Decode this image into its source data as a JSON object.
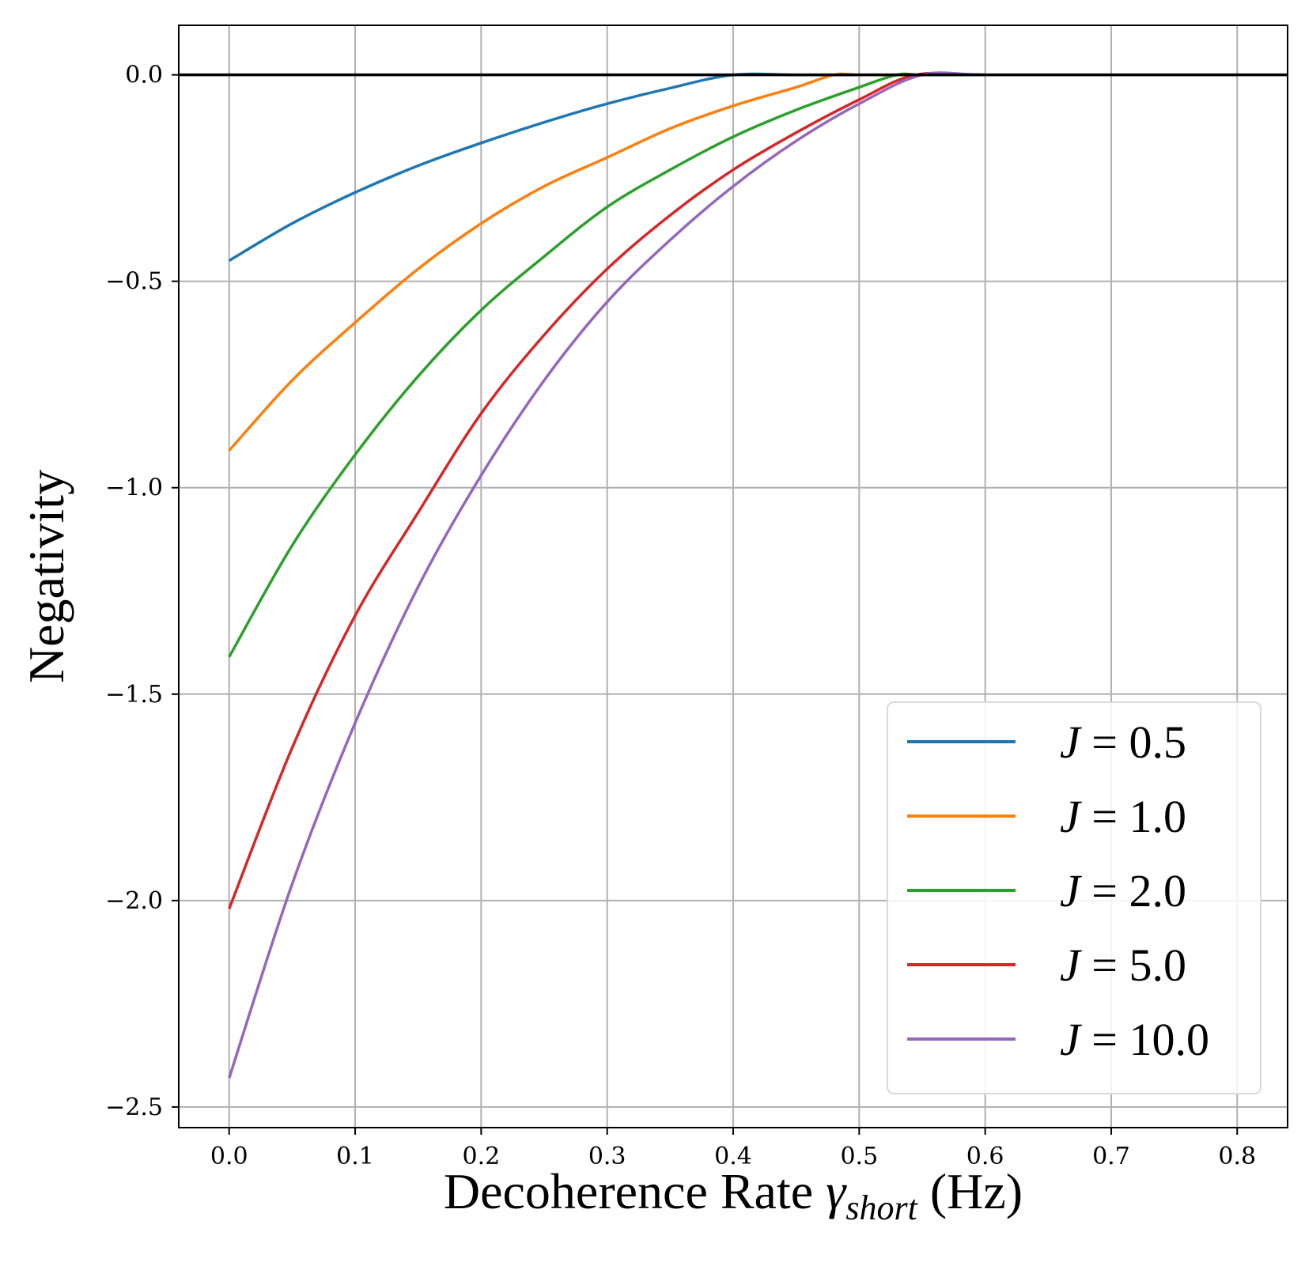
{
  "chart_data": {
    "type": "line",
    "title": "",
    "xlabel": {
      "main": "Decoherence Rate ",
      "symbol": "γ",
      "subscript": "short",
      "unit": " (Hz)"
    },
    "ylabel": "Negativity",
    "xlim": [
      -0.04,
      0.84
    ],
    "ylim": [
      -2.55,
      0.12
    ],
    "xticks": [
      0.0,
      0.1,
      0.2,
      0.3,
      0.4,
      0.5,
      0.6,
      0.7,
      0.8
    ],
    "yticks": [
      0.0,
      -0.5,
      -1.0,
      -1.5,
      -2.0,
      -2.5
    ],
    "xtick_labels": [
      "0.0",
      "0.1",
      "0.2",
      "0.3",
      "0.4",
      "0.5",
      "0.6",
      "0.7",
      "0.8"
    ],
    "ytick_labels": [
      "0.0",
      "−0.5",
      "−1.0",
      "−1.5",
      "−2.0",
      "−2.5"
    ],
    "grid": true,
    "legend_position": "lower-right",
    "reference_line": {
      "y": 0.0,
      "color": "#000000"
    },
    "series": [
      {
        "name": "J = 0.5",
        "var": "J",
        "eq": " = ",
        "num": "0.5",
        "color": "#1f77b4",
        "x": [
          0.0,
          0.05,
          0.1,
          0.15,
          0.2,
          0.25,
          0.3,
          0.35,
          0.4,
          0.45,
          0.5,
          0.55,
          0.6,
          0.7,
          0.8
        ],
        "y": [
          -0.45,
          -0.36,
          -0.285,
          -0.22,
          -0.165,
          -0.115,
          -0.07,
          -0.032,
          0.0,
          0.0,
          0.0,
          0.0,
          0.0,
          0.0,
          0.0
        ]
      },
      {
        "name": "J = 1.0",
        "var": "J",
        "eq": " = ",
        "num": "1.0",
        "color": "#ff7f0e",
        "x": [
          0.0,
          0.05,
          0.1,
          0.15,
          0.2,
          0.25,
          0.3,
          0.35,
          0.4,
          0.45,
          0.48,
          0.5,
          0.55,
          0.6,
          0.7,
          0.8
        ],
        "y": [
          -0.91,
          -0.74,
          -0.6,
          -0.47,
          -0.36,
          -0.27,
          -0.2,
          -0.13,
          -0.075,
          -0.03,
          0.0,
          0.0,
          0.0,
          0.0,
          0.0,
          0.0
        ]
      },
      {
        "name": "J = 2.0",
        "var": "J",
        "eq": " = ",
        "num": "2.0",
        "color": "#2ca02c",
        "x": [
          0.0,
          0.05,
          0.1,
          0.15,
          0.2,
          0.25,
          0.3,
          0.35,
          0.4,
          0.45,
          0.5,
          0.53,
          0.55,
          0.6,
          0.7,
          0.8
        ],
        "y": [
          -1.41,
          -1.14,
          -0.92,
          -0.73,
          -0.57,
          -0.44,
          -0.32,
          -0.23,
          -0.15,
          -0.085,
          -0.03,
          0.0,
          0.0,
          0.0,
          0.0,
          0.0
        ]
      },
      {
        "name": "J = 5.0",
        "var": "J",
        "eq": " = ",
        "num": "5.0",
        "color": "#d62728",
        "x": [
          0.0,
          0.05,
          0.1,
          0.15,
          0.2,
          0.25,
          0.3,
          0.35,
          0.4,
          0.45,
          0.5,
          0.545,
          0.6,
          0.7,
          0.8
        ],
        "y": [
          -2.02,
          -1.63,
          -1.31,
          -1.06,
          -0.82,
          -0.63,
          -0.47,
          -0.34,
          -0.23,
          -0.14,
          -0.06,
          0.0,
          0.0,
          0.0,
          0.0
        ]
      },
      {
        "name": "J = 10.0",
        "var": "J",
        "eq": " = ",
        "num": "10.0",
        "color": "#9467bd",
        "x": [
          0.0,
          0.05,
          0.1,
          0.15,
          0.2,
          0.25,
          0.3,
          0.35,
          0.4,
          0.45,
          0.5,
          0.55,
          0.6,
          0.7,
          0.8
        ],
        "y": [
          -2.43,
          -1.96,
          -1.57,
          -1.24,
          -0.97,
          -0.74,
          -0.55,
          -0.4,
          -0.27,
          -0.16,
          -0.07,
          0.0,
          0.0,
          0.0,
          0.0
        ]
      }
    ]
  }
}
